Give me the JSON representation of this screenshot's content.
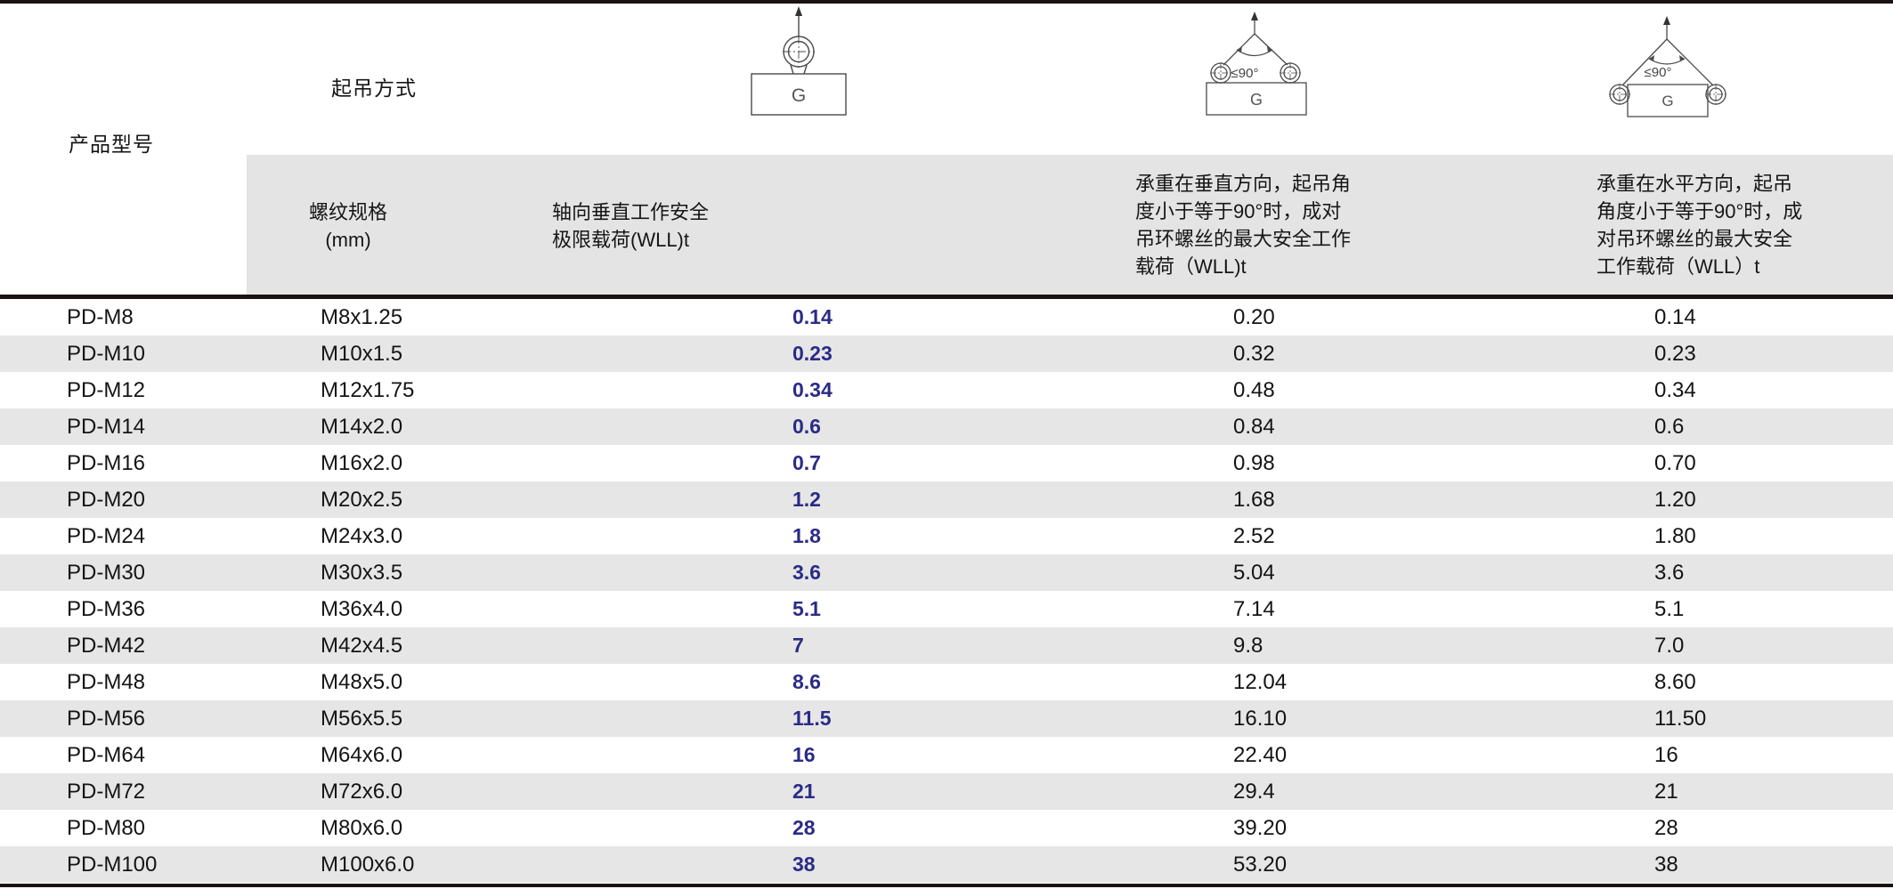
{
  "page": {
    "product_model_label": "产品型号",
    "lifting_method_label": "起吊方式"
  },
  "diagrams": {
    "single_vertical": {
      "box_label": "G"
    },
    "pair_vertical": {
      "box_label": "G",
      "angle_label": "≤90°"
    },
    "pair_horizontal": {
      "box_label": "G",
      "angle_label": "≤90°"
    }
  },
  "columns": {
    "thread_spec": [
      "螺纹规格",
      "(mm)"
    ],
    "axial_wll": [
      "轴向垂直工作安全",
      "极限载荷(WLL)t"
    ],
    "vertical_pair_wll": [
      "承重在垂直方向，起吊角",
      "度小于等于90°时，成对",
      "吊环螺丝的最大安全工作",
      "载荷（WLL)t"
    ],
    "horizontal_pair_wll": [
      "承重在水平方向，起吊",
      "角度小于等于90°时，成",
      "对吊环螺丝的最大安全",
      "工作载荷（WLL）t"
    ]
  },
  "table": {
    "rows": [
      {
        "model": "PD-M8",
        "thread": "M8x1.25",
        "axial_wll": "0.14",
        "vertical_pair_wll": "0.20",
        "horizontal_pair_wll": "0.14"
      },
      {
        "model": "PD-M10",
        "thread": "M10x1.5",
        "axial_wll": "0.23",
        "vertical_pair_wll": "0.32",
        "horizontal_pair_wll": "0.23"
      },
      {
        "model": "PD-M12",
        "thread": "M12x1.75",
        "axial_wll": "0.34",
        "vertical_pair_wll": "0.48",
        "horizontal_pair_wll": "0.34"
      },
      {
        "model": "PD-M14",
        "thread": "M14x2.0",
        "axial_wll": "0.6",
        "vertical_pair_wll": "0.84",
        "horizontal_pair_wll": "0.6"
      },
      {
        "model": "PD-M16",
        "thread": "M16x2.0",
        "axial_wll": "0.7",
        "vertical_pair_wll": "0.98",
        "horizontal_pair_wll": "0.70"
      },
      {
        "model": "PD-M20",
        "thread": "M20x2.5",
        "axial_wll": "1.2",
        "vertical_pair_wll": "1.68",
        "horizontal_pair_wll": "1.20"
      },
      {
        "model": "PD-M24",
        "thread": "M24x3.0",
        "axial_wll": "1.8",
        "vertical_pair_wll": "2.52",
        "horizontal_pair_wll": "1.80"
      },
      {
        "model": "PD-M30",
        "thread": "M30x3.5",
        "axial_wll": "3.6",
        "vertical_pair_wll": "5.04",
        "horizontal_pair_wll": "3.6"
      },
      {
        "model": "PD-M36",
        "thread": "M36x4.0",
        "axial_wll": "5.1",
        "vertical_pair_wll": "7.14",
        "horizontal_pair_wll": "5.1"
      },
      {
        "model": "PD-M42",
        "thread": "M42x4.5",
        "axial_wll": "7",
        "vertical_pair_wll": "9.8",
        "horizontal_pair_wll": "7.0"
      },
      {
        "model": "PD-M48",
        "thread": "M48x5.0",
        "axial_wll": "8.6",
        "vertical_pair_wll": "12.04",
        "horizontal_pair_wll": "8.60"
      },
      {
        "model": "PD-M56",
        "thread": "M56x5.5",
        "axial_wll": "11.5",
        "vertical_pair_wll": "16.10",
        "horizontal_pair_wll": "11.50"
      },
      {
        "model": "PD-M64",
        "thread": "M64x6.0",
        "axial_wll": "16",
        "vertical_pair_wll": "22.40",
        "horizontal_pair_wll": "16"
      },
      {
        "model": "PD-M72",
        "thread": "M72x6.0",
        "axial_wll": "21",
        "vertical_pair_wll": "29.4",
        "horizontal_pair_wll": "21"
      },
      {
        "model": "PD-M80",
        "thread": "M80x6.0",
        "axial_wll": "28",
        "vertical_pair_wll": "39.20",
        "horizontal_pair_wll": "28"
      },
      {
        "model": "PD-M100",
        "thread": "M100x6.0",
        "axial_wll": "38",
        "vertical_pair_wll": "53.20",
        "horizontal_pair_wll": "38"
      }
    ]
  },
  "colors": {
    "accent_blue": "#2b2b87",
    "row_stripe": "#e6e6e6",
    "header_band": "#e4e4e4",
    "rule_line": "#1b1212"
  }
}
